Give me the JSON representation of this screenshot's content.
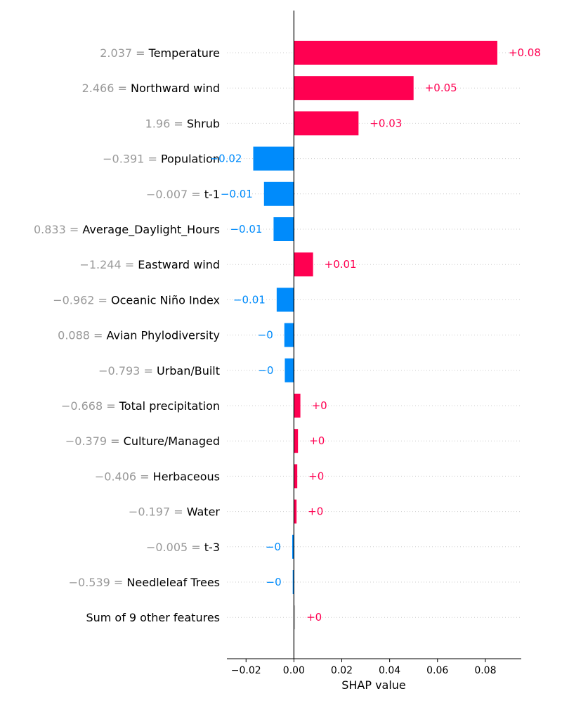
{
  "chart_data": {
    "type": "bar",
    "orientation": "horizontal",
    "xlabel": "SHAP value",
    "xlim": [
      -0.028,
      0.095
    ],
    "xticks": [
      -0.02,
      0.0,
      0.02,
      0.04,
      0.06,
      0.08
    ],
    "xtick_labels": [
      "−0.02",
      "0.00",
      "0.02",
      "0.04",
      "0.06",
      "0.08"
    ],
    "grid": "dotted horizontal row guides",
    "colors": {
      "positive": "#ff0051",
      "negative": "#008bfb",
      "other": "#cccccc",
      "feature_value": "#999999"
    },
    "rows": [
      {
        "value": "2.037",
        "feature": "Temperature",
        "shap": 0.085,
        "label": "+0.08"
      },
      {
        "value": "2.466",
        "feature": "Northward wind",
        "shap": 0.05,
        "label": "+0.05"
      },
      {
        "value": "1.96",
        "feature": "Shrub",
        "shap": 0.027,
        "label": "+0.03"
      },
      {
        "value": "−0.391",
        "feature": "Population",
        "shap": -0.017,
        "label": "−0.02"
      },
      {
        "value": "−0.007",
        "feature": "t-1",
        "shap": -0.0125,
        "label": "−0.01"
      },
      {
        "value": "0.833",
        "feature": "Average_Daylight_Hours",
        "shap": -0.0085,
        "label": "−0.01"
      },
      {
        "value": "−1.244",
        "feature": "Eastward wind",
        "shap": 0.008,
        "label": "+0.01"
      },
      {
        "value": "−0.962",
        "feature": "Oceanic Niño Index",
        "shap": -0.0072,
        "label": "−0.01"
      },
      {
        "value": "0.088",
        "feature": "Avian Phylodiversity",
        "shap": -0.004,
        "label": "−0"
      },
      {
        "value": "−0.793",
        "feature": "Urban/Built",
        "shap": -0.0038,
        "label": "−0"
      },
      {
        "value": "−0.668",
        "feature": "Total precipitation",
        "shap": 0.0027,
        "label": "+0"
      },
      {
        "value": "−0.379",
        "feature": "Culture/Managed",
        "shap": 0.0017,
        "label": "+0"
      },
      {
        "value": "−0.406",
        "feature": "Herbaceous",
        "shap": 0.0014,
        "label": "+0"
      },
      {
        "value": "−0.197",
        "feature": "Water",
        "shap": 0.0011,
        "label": "+0"
      },
      {
        "value": "−0.005",
        "feature": "t-3",
        "shap": -0.0007,
        "label": "−0"
      },
      {
        "value": "−0.539",
        "feature": "Needleleaf Trees",
        "shap": -0.0005,
        "label": "−0"
      },
      {
        "value": "",
        "feature": "Sum of 9 other features",
        "shap": 0.0005,
        "label": "+0",
        "other": true
      }
    ]
  }
}
